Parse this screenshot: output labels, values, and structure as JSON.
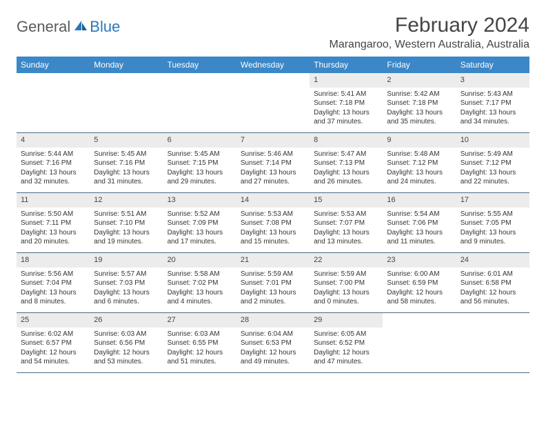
{
  "colors": {
    "header_bg": "#3b87c8",
    "header_text": "#ffffff",
    "daynum_bg": "#ececec",
    "body_text": "#333333",
    "divider": "#4a6a8a",
    "logo_gray": "#5a5a5a",
    "logo_blue": "#2a77bb"
  },
  "logo": {
    "general": "General",
    "blue": "Blue"
  },
  "title": "February 2024",
  "location": "Marangaroo, Western Australia, Australia",
  "day_headers": [
    "Sunday",
    "Monday",
    "Tuesday",
    "Wednesday",
    "Thursday",
    "Friday",
    "Saturday"
  ],
  "weeks": [
    [
      {
        "n": "",
        "sr": "",
        "ss": "",
        "dl": ""
      },
      {
        "n": "",
        "sr": "",
        "ss": "",
        "dl": ""
      },
      {
        "n": "",
        "sr": "",
        "ss": "",
        "dl": ""
      },
      {
        "n": "",
        "sr": "",
        "ss": "",
        "dl": ""
      },
      {
        "n": "1",
        "sr": "Sunrise: 5:41 AM",
        "ss": "Sunset: 7:18 PM",
        "dl": "Daylight: 13 hours and 37 minutes."
      },
      {
        "n": "2",
        "sr": "Sunrise: 5:42 AM",
        "ss": "Sunset: 7:18 PM",
        "dl": "Daylight: 13 hours and 35 minutes."
      },
      {
        "n": "3",
        "sr": "Sunrise: 5:43 AM",
        "ss": "Sunset: 7:17 PM",
        "dl": "Daylight: 13 hours and 34 minutes."
      }
    ],
    [
      {
        "n": "4",
        "sr": "Sunrise: 5:44 AM",
        "ss": "Sunset: 7:16 PM",
        "dl": "Daylight: 13 hours and 32 minutes."
      },
      {
        "n": "5",
        "sr": "Sunrise: 5:45 AM",
        "ss": "Sunset: 7:16 PM",
        "dl": "Daylight: 13 hours and 31 minutes."
      },
      {
        "n": "6",
        "sr": "Sunrise: 5:45 AM",
        "ss": "Sunset: 7:15 PM",
        "dl": "Daylight: 13 hours and 29 minutes."
      },
      {
        "n": "7",
        "sr": "Sunrise: 5:46 AM",
        "ss": "Sunset: 7:14 PM",
        "dl": "Daylight: 13 hours and 27 minutes."
      },
      {
        "n": "8",
        "sr": "Sunrise: 5:47 AM",
        "ss": "Sunset: 7:13 PM",
        "dl": "Daylight: 13 hours and 26 minutes."
      },
      {
        "n": "9",
        "sr": "Sunrise: 5:48 AM",
        "ss": "Sunset: 7:12 PM",
        "dl": "Daylight: 13 hours and 24 minutes."
      },
      {
        "n": "10",
        "sr": "Sunrise: 5:49 AM",
        "ss": "Sunset: 7:12 PM",
        "dl": "Daylight: 13 hours and 22 minutes."
      }
    ],
    [
      {
        "n": "11",
        "sr": "Sunrise: 5:50 AM",
        "ss": "Sunset: 7:11 PM",
        "dl": "Daylight: 13 hours and 20 minutes."
      },
      {
        "n": "12",
        "sr": "Sunrise: 5:51 AM",
        "ss": "Sunset: 7:10 PM",
        "dl": "Daylight: 13 hours and 19 minutes."
      },
      {
        "n": "13",
        "sr": "Sunrise: 5:52 AM",
        "ss": "Sunset: 7:09 PM",
        "dl": "Daylight: 13 hours and 17 minutes."
      },
      {
        "n": "14",
        "sr": "Sunrise: 5:53 AM",
        "ss": "Sunset: 7:08 PM",
        "dl": "Daylight: 13 hours and 15 minutes."
      },
      {
        "n": "15",
        "sr": "Sunrise: 5:53 AM",
        "ss": "Sunset: 7:07 PM",
        "dl": "Daylight: 13 hours and 13 minutes."
      },
      {
        "n": "16",
        "sr": "Sunrise: 5:54 AM",
        "ss": "Sunset: 7:06 PM",
        "dl": "Daylight: 13 hours and 11 minutes."
      },
      {
        "n": "17",
        "sr": "Sunrise: 5:55 AM",
        "ss": "Sunset: 7:05 PM",
        "dl": "Daylight: 13 hours and 9 minutes."
      }
    ],
    [
      {
        "n": "18",
        "sr": "Sunrise: 5:56 AM",
        "ss": "Sunset: 7:04 PM",
        "dl": "Daylight: 13 hours and 8 minutes."
      },
      {
        "n": "19",
        "sr": "Sunrise: 5:57 AM",
        "ss": "Sunset: 7:03 PM",
        "dl": "Daylight: 13 hours and 6 minutes."
      },
      {
        "n": "20",
        "sr": "Sunrise: 5:58 AM",
        "ss": "Sunset: 7:02 PM",
        "dl": "Daylight: 13 hours and 4 minutes."
      },
      {
        "n": "21",
        "sr": "Sunrise: 5:59 AM",
        "ss": "Sunset: 7:01 PM",
        "dl": "Daylight: 13 hours and 2 minutes."
      },
      {
        "n": "22",
        "sr": "Sunrise: 5:59 AM",
        "ss": "Sunset: 7:00 PM",
        "dl": "Daylight: 13 hours and 0 minutes."
      },
      {
        "n": "23",
        "sr": "Sunrise: 6:00 AM",
        "ss": "Sunset: 6:59 PM",
        "dl": "Daylight: 12 hours and 58 minutes."
      },
      {
        "n": "24",
        "sr": "Sunrise: 6:01 AM",
        "ss": "Sunset: 6:58 PM",
        "dl": "Daylight: 12 hours and 56 minutes."
      }
    ],
    [
      {
        "n": "25",
        "sr": "Sunrise: 6:02 AM",
        "ss": "Sunset: 6:57 PM",
        "dl": "Daylight: 12 hours and 54 minutes."
      },
      {
        "n": "26",
        "sr": "Sunrise: 6:03 AM",
        "ss": "Sunset: 6:56 PM",
        "dl": "Daylight: 12 hours and 53 minutes."
      },
      {
        "n": "27",
        "sr": "Sunrise: 6:03 AM",
        "ss": "Sunset: 6:55 PM",
        "dl": "Daylight: 12 hours and 51 minutes."
      },
      {
        "n": "28",
        "sr": "Sunrise: 6:04 AM",
        "ss": "Sunset: 6:53 PM",
        "dl": "Daylight: 12 hours and 49 minutes."
      },
      {
        "n": "29",
        "sr": "Sunrise: 6:05 AM",
        "ss": "Sunset: 6:52 PM",
        "dl": "Daylight: 12 hours and 47 minutes."
      },
      {
        "n": "",
        "sr": "",
        "ss": "",
        "dl": ""
      },
      {
        "n": "",
        "sr": "",
        "ss": "",
        "dl": ""
      }
    ]
  ]
}
